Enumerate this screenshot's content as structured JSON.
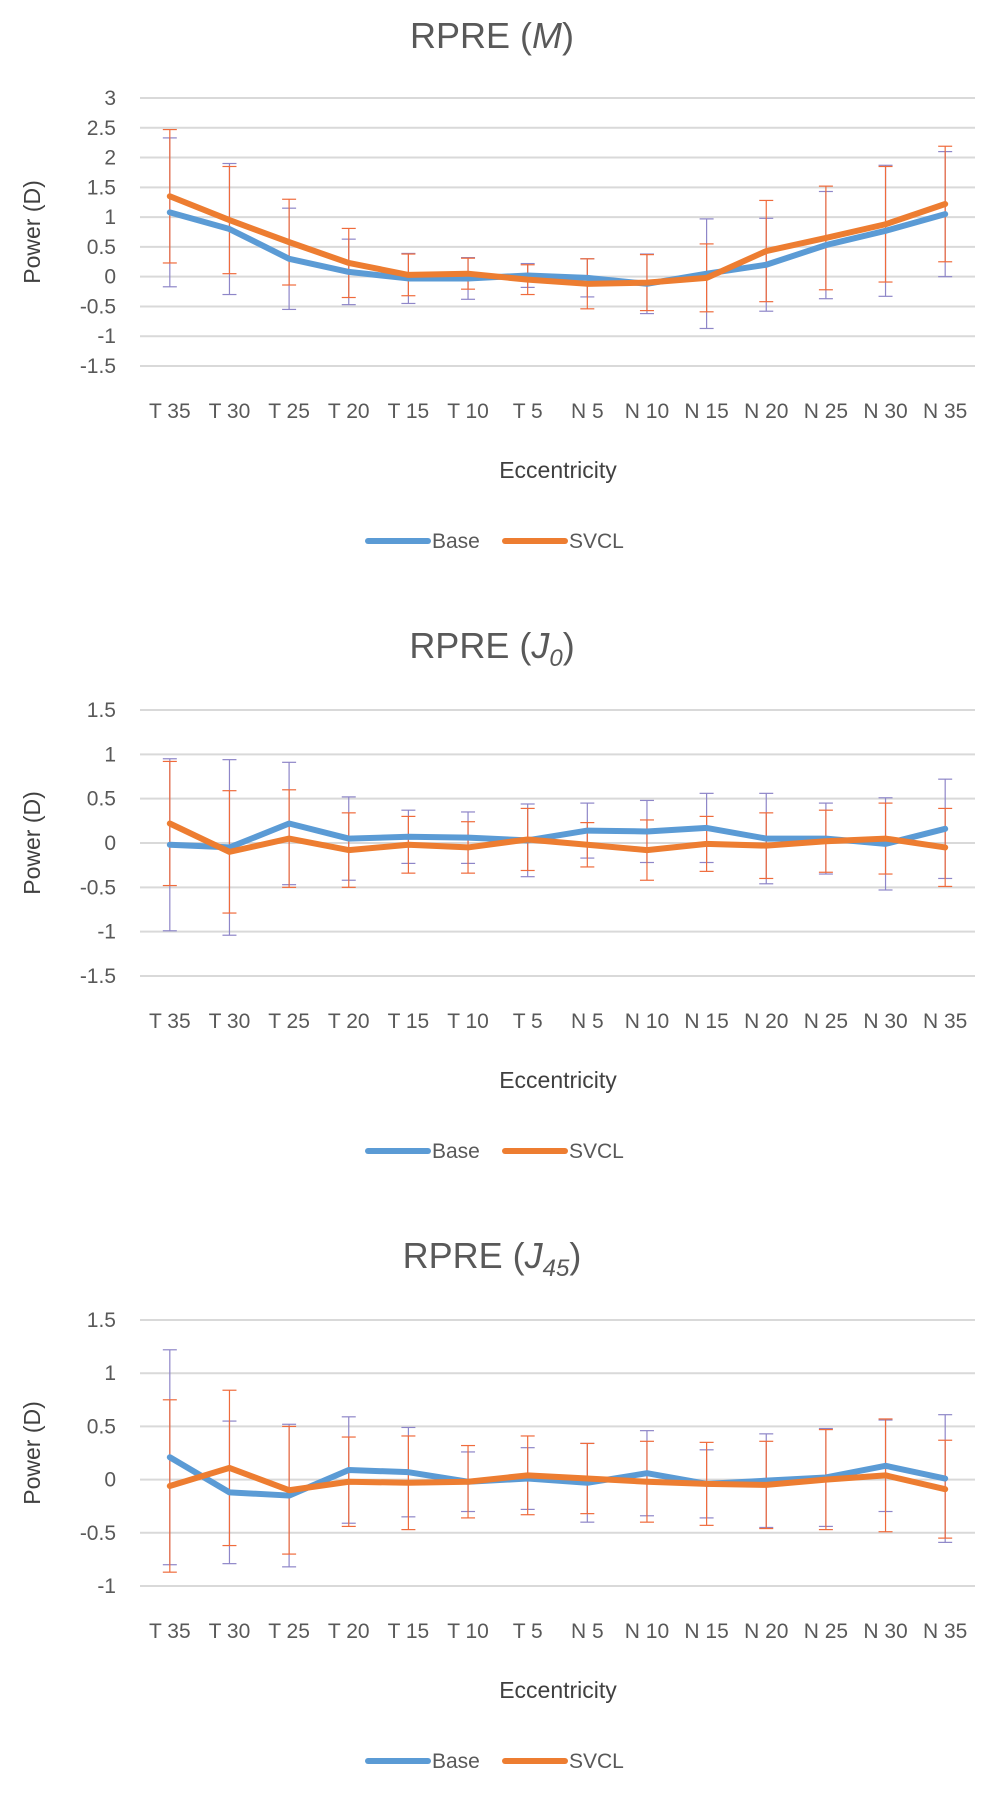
{
  "chart_data": [
    {
      "type": "line",
      "title_prefix": "RPRE (",
      "title_var": "M",
      "title_sub": "",
      "title_suffix": ")",
      "xlabel": "Eccentricity",
      "ylabel": "Power (D)",
      "categories": [
        "T 35",
        "T 30",
        "T 25",
        "T 20",
        "T 15",
        "T 10",
        "T 5",
        "N 5",
        "N 10",
        "N 15",
        "N 20",
        "N 25",
        "N 30",
        "N 35"
      ],
      "yticks": [
        3,
        2.5,
        2,
        1.5,
        1,
        0.5,
        0,
        -0.5,
        -1,
        -1.5
      ],
      "ylim": [
        -1.5,
        3
      ],
      "grid": true,
      "legend_position": "bottom",
      "series": [
        {
          "name": "Base",
          "color": "#5b9bd5",
          "values": [
            1.08,
            0.8,
            0.3,
            0.08,
            -0.03,
            -0.03,
            0.02,
            -0.02,
            -0.12,
            0.05,
            0.2,
            0.53,
            0.77,
            1.05
          ],
          "error": [
            1.25,
            1.1,
            0.85,
            0.55,
            0.42,
            0.35,
            0.2,
            0.32,
            0.5,
            0.92,
            0.78,
            0.9,
            1.1,
            1.05
          ]
        },
        {
          "name": "SVCL",
          "color": "#ed7d31",
          "values": [
            1.35,
            0.95,
            0.58,
            0.23,
            0.03,
            0.05,
            -0.05,
            -0.12,
            -0.1,
            -0.02,
            0.43,
            0.65,
            0.88,
            1.22
          ],
          "error": [
            1.12,
            0.9,
            0.72,
            0.58,
            0.35,
            0.26,
            0.25,
            0.42,
            0.47,
            0.57,
            0.85,
            0.87,
            0.97,
            0.97
          ]
        }
      ]
    },
    {
      "type": "line",
      "title_prefix": "RPRE (",
      "title_var": "J",
      "title_sub": "0",
      "title_suffix": ")",
      "xlabel": "Eccentricity",
      "ylabel": "Power (D)",
      "categories": [
        "T 35",
        "T 30",
        "T 25",
        "T 20",
        "T 15",
        "T 10",
        "T 5",
        "N 5",
        "N 10",
        "N 15",
        "N 20",
        "N 25",
        "N 30",
        "N 35"
      ],
      "yticks": [
        1.5,
        1,
        0.5,
        0,
        -0.5,
        -1,
        -1.5
      ],
      "ylim": [
        -1.5,
        1.5
      ],
      "grid": true,
      "legend_position": "bottom",
      "series": [
        {
          "name": "Base",
          "color": "#5b9bd5",
          "values": [
            -0.02,
            -0.05,
            0.22,
            0.05,
            0.07,
            0.06,
            0.03,
            0.14,
            0.13,
            0.17,
            0.05,
            0.05,
            -0.01,
            0.16
          ],
          "error": [
            0.97,
            0.99,
            0.69,
            0.47,
            0.3,
            0.29,
            0.41,
            0.31,
            0.35,
            0.39,
            0.51,
            0.4,
            0.52,
            0.56
          ]
        },
        {
          "name": "SVCL",
          "color": "#ed7d31",
          "values": [
            0.22,
            -0.1,
            0.05,
            -0.08,
            -0.02,
            -0.05,
            0.04,
            -0.02,
            -0.08,
            -0.01,
            -0.03,
            0.02,
            0.05,
            -0.05
          ],
          "error": [
            0.7,
            0.69,
            0.55,
            0.42,
            0.32,
            0.29,
            0.35,
            0.25,
            0.34,
            0.31,
            0.37,
            0.35,
            0.4,
            0.44
          ]
        }
      ]
    },
    {
      "type": "line",
      "title_prefix": "RPRE (",
      "title_var": "J",
      "title_sub": "45",
      "title_suffix": ")",
      "xlabel": "Eccentricity",
      "ylabel": "Power (D)",
      "categories": [
        "T 35",
        "T 30",
        "T 25",
        "T 20",
        "T 15",
        "T 10",
        "T 5",
        "N 5",
        "N 10",
        "N 15",
        "N 20",
        "N 25",
        "N 30",
        "N 35"
      ],
      "yticks": [
        1.5,
        1,
        0.5,
        0,
        -0.5,
        -1
      ],
      "ylim": [
        -1,
        1.5
      ],
      "grid": true,
      "legend_position": "bottom",
      "series": [
        {
          "name": "Base",
          "color": "#5b9bd5",
          "values": [
            0.21,
            -0.12,
            -0.15,
            0.09,
            0.07,
            -0.02,
            0.01,
            -0.03,
            0.06,
            -0.04,
            -0.01,
            0.02,
            0.13,
            0.01
          ],
          "error": [
            1.01,
            0.67,
            0.67,
            0.5,
            0.42,
            0.28,
            0.29,
            0.37,
            0.4,
            0.32,
            0.44,
            0.46,
            0.43,
            0.6
          ]
        },
        {
          "name": "SVCL",
          "color": "#ed7d31",
          "values": [
            -0.06,
            0.11,
            -0.1,
            -0.02,
            -0.03,
            -0.02,
            0.04,
            0.01,
            -0.02,
            -0.04,
            -0.05,
            0.0,
            0.04,
            -0.09
          ],
          "error": [
            0.81,
            0.73,
            0.6,
            0.42,
            0.44,
            0.34,
            0.37,
            0.33,
            0.38,
            0.39,
            0.41,
            0.47,
            0.53,
            0.46
          ]
        }
      ]
    }
  ]
}
